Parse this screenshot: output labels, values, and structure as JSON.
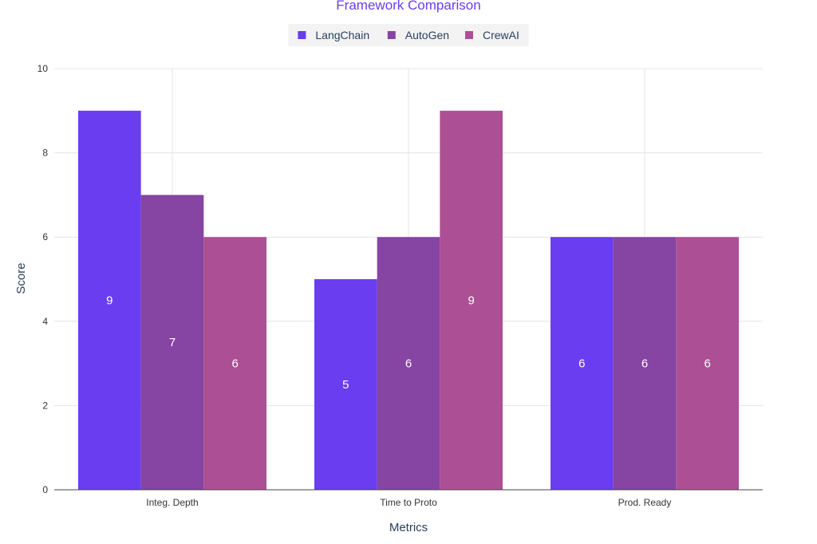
{
  "chart_data": {
    "type": "bar",
    "title": "Framework Comparison",
    "xlabel": "Metrics",
    "ylabel": "Score",
    "categories": [
      "Integ. Depth",
      "Time to Proto",
      "Prod. Ready"
    ],
    "series": [
      {
        "name": "LangChain",
        "values": [
          9,
          5,
          6
        ],
        "color": "#6a3df0"
      },
      {
        "name": "AutoGen",
        "values": [
          7,
          6,
          6
        ],
        "color": "#8644a3"
      },
      {
        "name": "CrewAI",
        "values": [
          6,
          9,
          6
        ],
        "color": "#ad4f95"
      }
    ],
    "ylim": [
      0,
      10
    ],
    "yticks": [
      0,
      2,
      4,
      6,
      8,
      10
    ],
    "grid": true,
    "legend_position": "top-center",
    "data_labels": true
  }
}
